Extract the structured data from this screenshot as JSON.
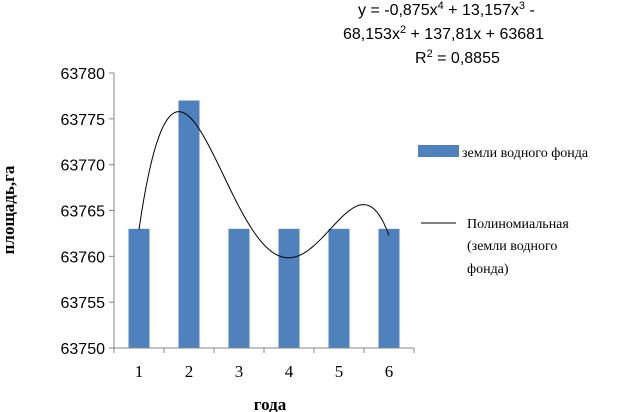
{
  "chart_data": {
    "type": "bar",
    "categories": [
      "1",
      "2",
      "3",
      "4",
      "5",
      "6"
    ],
    "series": [
      {
        "name": "земли водного фонда",
        "values": [
          63763,
          63777,
          63763,
          63763,
          63763,
          63763
        ],
        "color": "#4F81BD"
      }
    ],
    "trendline": {
      "type": "polynomial",
      "order": 4,
      "legend_lines": [
        "Полиномиальная",
        "(земли водного",
        "фонда)"
      ],
      "coefficients": [
        -0.875,
        13.157,
        -68.153,
        137.81,
        63681
      ],
      "equation_lines": [
        "y = -0,875x",
        "4",
        " + 13,157x",
        "3",
        " -",
        "68,153x",
        "2",
        " + 137,81x + 63681",
        "R",
        "2",
        " = 0,8855"
      ],
      "color": "#000000"
    },
    "xlabel": "года",
    "ylabel": "площадь,га",
    "ylim": [
      63750,
      63780
    ],
    "yticks": [
      "63750",
      "63755",
      "63760",
      "63765",
      "63770",
      "63775",
      "63780"
    ],
    "grid": false,
    "legend_placement": "right"
  }
}
